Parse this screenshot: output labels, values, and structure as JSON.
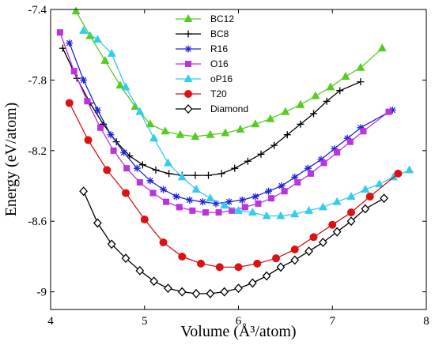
{
  "chart_data": {
    "type": "line",
    "xlabel": "Volume (Å³/atom)",
    "ylabel": "Energy (eV/atom)",
    "xlim": [
      4,
      8
    ],
    "ylim": [
      -9.1,
      -7.4
    ],
    "xticks": [
      4,
      5,
      6,
      7,
      8
    ],
    "xtick_labels": [
      "4",
      "5",
      "6",
      "7",
      "8"
    ],
    "yticks": [
      -7.4,
      -7.8,
      -8.2,
      -8.6,
      -9.0
    ],
    "ytick_labels": [
      "-7.4",
      "-7.8",
      "-8.2",
      "-8.6",
      "-9"
    ],
    "grid": false,
    "legend_position": "top-center",
    "series": [
      {
        "name": "BC12",
        "color": "#55cc22",
        "marker": "triangle",
        "x": [
          4.27,
          4.42,
          4.58,
          4.74,
          4.9,
          5.06,
          5.22,
          5.38,
          5.54,
          5.7,
          5.86,
          6.02,
          6.18,
          6.34,
          6.5,
          6.66,
          6.82,
          6.98,
          7.14,
          7.3,
          7.53
        ],
        "y": [
          -7.41,
          -7.55,
          -7.69,
          -7.83,
          -7.95,
          -8.05,
          -8.09,
          -8.11,
          -8.12,
          -8.11,
          -8.1,
          -8.08,
          -8.05,
          -8.02,
          -7.98,
          -7.94,
          -7.89,
          -7.84,
          -7.78,
          -7.73,
          -7.62
        ]
      },
      {
        "name": "BC8",
        "color": "#000000",
        "marker": "plus",
        "x": [
          4.13,
          4.28,
          4.42,
          4.56,
          4.7,
          4.84,
          4.98,
          5.12,
          5.26,
          5.4,
          5.54,
          5.68,
          5.82,
          5.96,
          6.1,
          6.24,
          6.38,
          6.52,
          6.66,
          6.8,
          6.94,
          7.08,
          7.3
        ],
        "y": [
          -7.62,
          -7.79,
          -7.93,
          -8.05,
          -8.15,
          -8.23,
          -8.28,
          -8.31,
          -8.33,
          -8.34,
          -8.34,
          -8.34,
          -8.33,
          -8.3,
          -8.26,
          -8.22,
          -8.17,
          -8.11,
          -8.05,
          -7.99,
          -7.92,
          -7.86,
          -7.81
        ]
      },
      {
        "name": "R16",
        "color": "#2222dd",
        "marker": "star",
        "x": [
          4.2,
          4.35,
          4.5,
          4.64,
          4.78,
          4.92,
          5.06,
          5.2,
          5.34,
          5.48,
          5.62,
          5.76,
          5.9,
          6.04,
          6.18,
          6.32,
          6.46,
          6.6,
          6.74,
          6.88,
          7.02,
          7.16,
          7.3,
          7.64
        ],
        "y": [
          -7.59,
          -7.8,
          -7.97,
          -8.11,
          -8.21,
          -8.3,
          -8.37,
          -8.42,
          -8.46,
          -8.48,
          -8.49,
          -8.5,
          -8.49,
          -8.48,
          -8.46,
          -8.43,
          -8.4,
          -8.35,
          -8.3,
          -8.25,
          -8.19,
          -8.13,
          -8.07,
          -7.97
        ]
      },
      {
        "name": "O16",
        "color": "#bb33dd",
        "marker": "square",
        "x": [
          4.1,
          4.25,
          4.39,
          4.53,
          4.67,
          4.81,
          4.95,
          5.09,
          5.23,
          5.37,
          5.51,
          5.65,
          5.79,
          5.93,
          6.07,
          6.21,
          6.35,
          6.49,
          6.63,
          6.77,
          6.91,
          7.05,
          7.19,
          7.33,
          7.6
        ],
        "y": [
          -7.53,
          -7.75,
          -7.92,
          -8.07,
          -8.2,
          -8.3,
          -8.38,
          -8.44,
          -8.49,
          -8.52,
          -8.54,
          -8.55,
          -8.55,
          -8.54,
          -8.52,
          -8.5,
          -8.47,
          -8.43,
          -8.38,
          -8.33,
          -8.27,
          -8.21,
          -8.15,
          -8.09,
          -7.98
        ]
      },
      {
        "name": "oP16",
        "color": "#33ccee",
        "marker": "triangle",
        "x": [
          4.35,
          4.5,
          4.65,
          4.8,
          4.95,
          5.1,
          5.25,
          5.4,
          5.55,
          5.7,
          5.85,
          6.0,
          6.15,
          6.3,
          6.45,
          6.6,
          6.75,
          6.9,
          7.05,
          7.2,
          7.35,
          7.5,
          7.65,
          7.82
        ],
        "y": [
          -7.52,
          -7.57,
          -7.65,
          -7.84,
          -7.98,
          -8.13,
          -8.27,
          -8.35,
          -8.42,
          -8.47,
          -8.51,
          -8.54,
          -8.55,
          -8.57,
          -8.57,
          -8.56,
          -8.54,
          -8.52,
          -8.49,
          -8.46,
          -8.42,
          -8.39,
          -8.35,
          -8.31
        ]
      },
      {
        "name": "T20",
        "color": "#dd1111",
        "marker": "circle",
        "x": [
          4.2,
          4.4,
          4.6,
          4.8,
          5.0,
          5.2,
          5.4,
          5.6,
          5.8,
          6.0,
          6.2,
          6.4,
          6.6,
          6.8,
          7.0,
          7.2,
          7.4,
          7.7
        ],
        "y": [
          -7.93,
          -8.14,
          -8.31,
          -8.44,
          -8.59,
          -8.72,
          -8.8,
          -8.84,
          -8.86,
          -8.86,
          -8.84,
          -8.81,
          -8.76,
          -8.69,
          -8.62,
          -8.55,
          -8.46,
          -8.33
        ]
      },
      {
        "name": "Diamond",
        "color": "#000000",
        "marker": "diamond",
        "x": [
          4.35,
          4.5,
          4.65,
          4.8,
          4.95,
          5.1,
          5.25,
          5.4,
          5.55,
          5.7,
          5.85,
          6.0,
          6.15,
          6.3,
          6.45,
          6.6,
          6.75,
          6.9,
          7.05,
          7.2,
          7.35,
          7.55
        ],
        "y": [
          -8.43,
          -8.61,
          -8.73,
          -8.81,
          -8.88,
          -8.94,
          -8.98,
          -9.0,
          -9.01,
          -9.01,
          -9.0,
          -8.98,
          -8.95,
          -8.91,
          -8.86,
          -8.82,
          -8.77,
          -8.72,
          -8.66,
          -8.6,
          -8.53,
          -8.47
        ]
      }
    ]
  }
}
